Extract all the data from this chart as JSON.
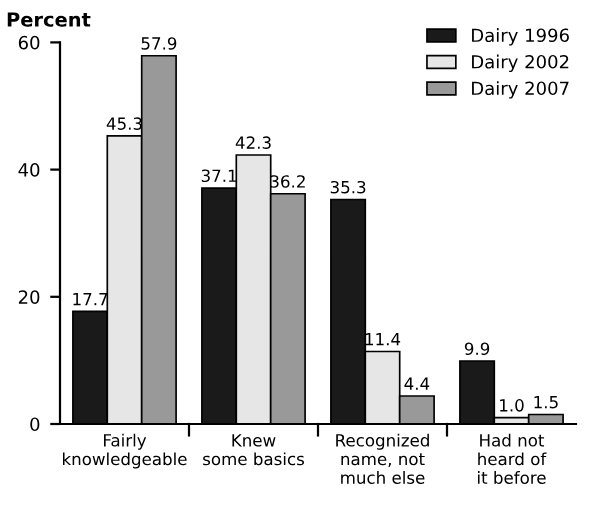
{
  "chart_data": {
    "type": "bar",
    "ylabel": "Percent",
    "categories": [
      "Fairly\nknowledgeable",
      "Knew\nsome basics",
      "Recognized\nname, not\nmuch else",
      "Had not\nheard of\nit before"
    ],
    "series": [
      {
        "name": "Dairy 1996",
        "color": "#1a1a1a",
        "values": [
          17.7,
          37.1,
          35.3,
          9.9
        ],
        "value_labels": [
          "17.7",
          "37.1",
          "35.3",
          "9.9"
        ]
      },
      {
        "name": "Dairy 2002",
        "color": "#e6e6e6",
        "values": [
          45.3,
          42.3,
          11.4,
          1.0
        ],
        "value_labels": [
          "45.3",
          "42.3",
          "11.4",
          "1.0"
        ]
      },
      {
        "name": "Dairy 2007",
        "color": "#999999",
        "values": [
          57.9,
          36.2,
          4.4,
          1.5
        ],
        "value_labels": [
          "57.9",
          "36.2",
          "4.4",
          "1.5"
        ]
      }
    ],
    "ylim": [
      0,
      60
    ],
    "yticks": [
      0,
      20,
      40,
      60
    ],
    "legend": "top right"
  }
}
